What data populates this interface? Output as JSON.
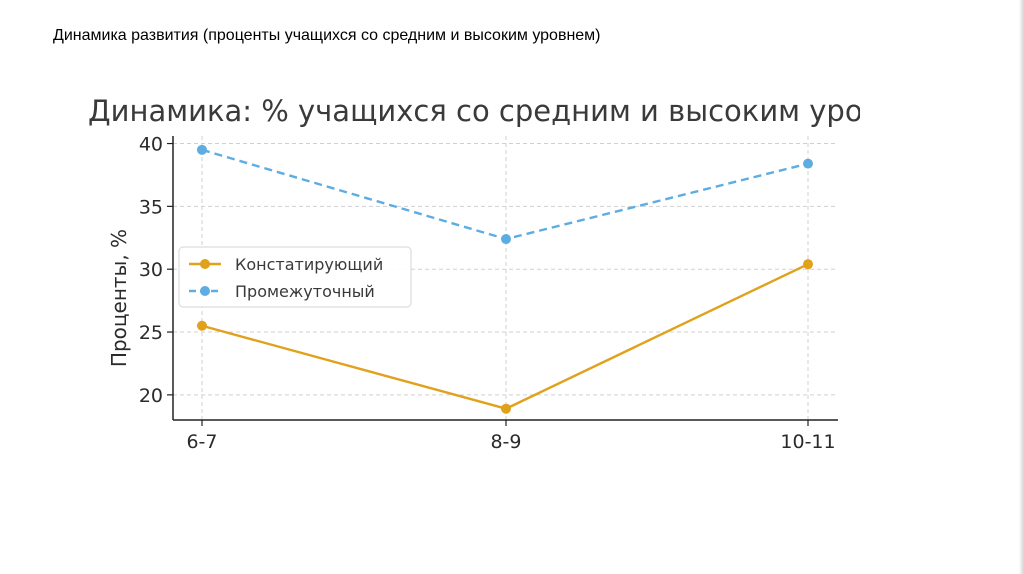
{
  "slide": {
    "title": "Динамика развития (проценты учащихся со средним и высоким уровнем)"
  },
  "chart_data": {
    "type": "line",
    "title": "Динамика: % учащихся со средним и высоким уровнем",
    "xlabel": "",
    "ylabel": "Проценты, %",
    "categories": [
      "6-7",
      "8-9",
      "10-11"
    ],
    "series": [
      {
        "name": "Констатирующий",
        "values": [
          25.5,
          18.9,
          30.4
        ],
        "color": "#e0a11b",
        "style": "solid"
      },
      {
        "name": "Промежуточный",
        "values": [
          39.5,
          32.4,
          38.4
        ],
        "color": "#5dade2",
        "style": "dashed"
      }
    ],
    "ylim": [
      18,
      40.6
    ],
    "yticks": [
      20,
      25,
      30,
      35,
      40
    ],
    "grid": true,
    "legend": "center-left"
  }
}
